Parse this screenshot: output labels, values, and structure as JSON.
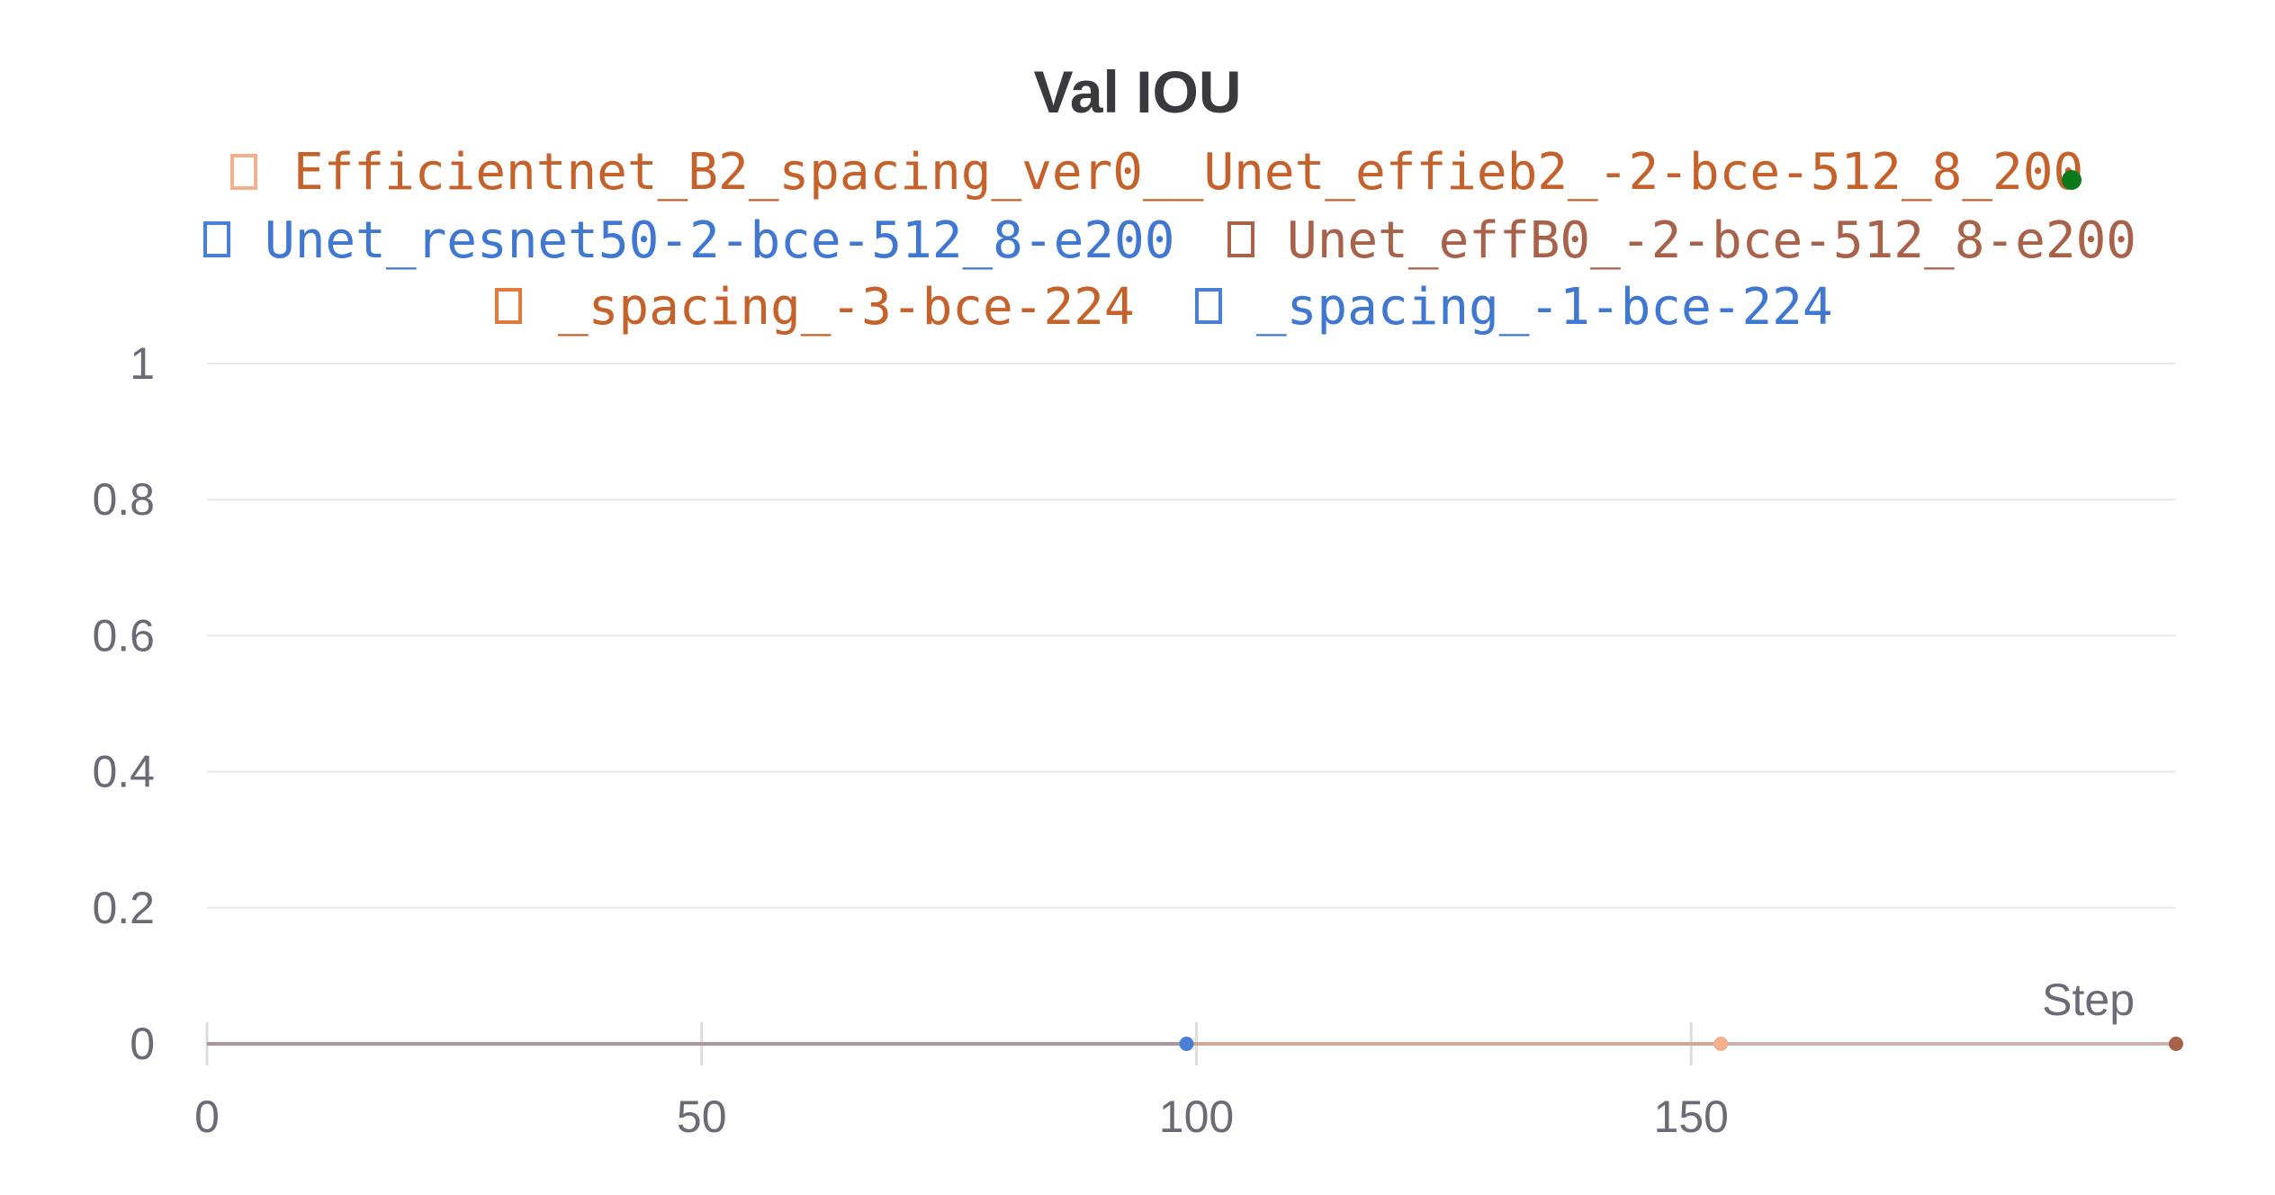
{
  "chart_data": {
    "type": "line",
    "title": "Val IOU",
    "xlabel": "Step",
    "ylabel": "",
    "xlim": [
      0,
      199
    ],
    "ylim": [
      0,
      1
    ],
    "xticks": [
      "0",
      "50",
      "100",
      "150"
    ],
    "xtick_values": [
      0,
      50,
      100,
      150
    ],
    "yticks": [
      "0",
      "0.2",
      "0.4",
      "0.6",
      "0.8",
      "1"
    ],
    "ytick_values": [
      0,
      0.2,
      0.4,
      0.6,
      0.8,
      1
    ],
    "grid": true,
    "legend_position": "top",
    "series": [
      {
        "name": "Efficientnet_B2_spacing_ver0__Unet_effieb2_-2-bce-512_8_200",
        "color": "#f2b08c",
        "x": [
          0,
          153
        ],
        "values": [
          0,
          0
        ]
      },
      {
        "name": "Unet_resnet50-2-bce-512_8-e200",
        "color": "#4a7fd6",
        "x": [
          0,
          99
        ],
        "values": [
          0,
          0
        ]
      },
      {
        "name": "Unet_effB0_-2-bce-512_8-e200",
        "color": "#a8624a",
        "x": [
          0,
          199
        ],
        "values": [
          0,
          0
        ]
      },
      {
        "name": "_spacing_-3-bce-224",
        "color": "#e07a3c",
        "x": [
          0
        ],
        "values": [
          0
        ]
      },
      {
        "name": "_spacing_-1-bce-224",
        "color": "#4a7fd6",
        "x": [
          0
        ],
        "values": [
          0
        ]
      }
    ],
    "legend_text_colors": [
      "#c5612a",
      "#3f77d1",
      "#a8624a",
      "#c5612a",
      "#3f77d1"
    ],
    "legend_extra_marker_color": "#0a7a1a"
  }
}
